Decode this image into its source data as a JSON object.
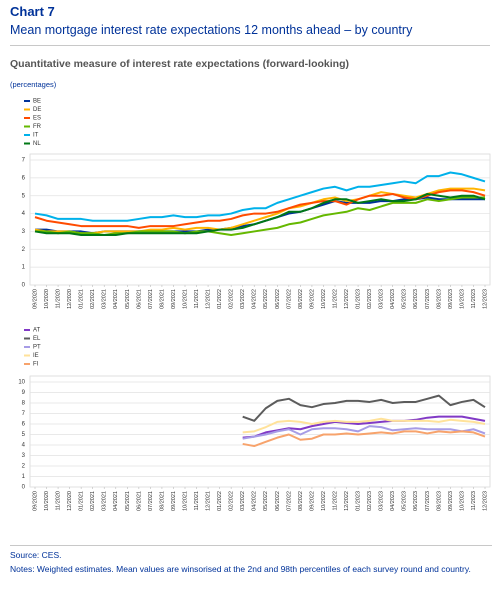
{
  "header": {
    "label": "Chart 7",
    "title": "Mean mortgage interest rate expectations 12 months ahead – by country",
    "subtitle": "Quantitative measure of interest rate expectations (forward-looking)",
    "unit": "(percentages)"
  },
  "footer": {
    "source": "Source: CES.",
    "notes": "Notes: Weighted estimates. Mean values are winsorised at the 2nd and 98th percentiles of each survey round and country."
  },
  "chart_data": [
    {
      "type": "line",
      "grid": true,
      "ylim": [
        0,
        7
      ],
      "yticks": [
        0,
        1,
        2,
        3,
        4,
        5,
        6,
        7
      ],
      "categories": [
        "09/2020",
        "10/2020",
        "11/2020",
        "12/2020",
        "01/2021",
        "02/2021",
        "03/2021",
        "04/2021",
        "05/2021",
        "06/2021",
        "07/2021",
        "08/2021",
        "09/2021",
        "10/2021",
        "11/2021",
        "12/2021",
        "01/2022",
        "02/2022",
        "03/2022",
        "04/2022",
        "05/2022",
        "06/2022",
        "07/2022",
        "08/2022",
        "09/2022",
        "10/2022",
        "11/2022",
        "12/2022",
        "01/2023",
        "02/2023",
        "03/2023",
        "04/2023",
        "05/2023",
        "06/2023",
        "07/2023",
        "08/2023",
        "09/2023",
        "10/2023",
        "11/2023",
        "12/2023"
      ],
      "series": [
        {
          "name": "BE",
          "color": "#003299",
          "values": [
            3.1,
            3.1,
            3.0,
            3.0,
            3.0,
            2.9,
            3.0,
            3.0,
            3.0,
            3.0,
            3.0,
            3.0,
            3.0,
            3.0,
            3.0,
            3.1,
            3.1,
            3.2,
            3.3,
            3.4,
            3.6,
            3.8,
            4.0,
            4.1,
            4.3,
            4.5,
            4.7,
            4.6,
            4.6,
            4.6,
            4.7,
            4.7,
            4.8,
            4.8,
            4.9,
            4.8,
            4.8,
            4.8,
            4.8,
            4.8
          ]
        },
        {
          "name": "DE",
          "color": "#ffb400",
          "values": [
            3.1,
            3.0,
            3.0,
            3.0,
            2.9,
            2.9,
            3.0,
            3.0,
            3.0,
            3.0,
            3.1,
            3.1,
            3.2,
            3.1,
            3.2,
            3.2,
            3.1,
            3.2,
            3.4,
            3.6,
            3.8,
            4.0,
            4.3,
            4.4,
            4.6,
            4.8,
            4.9,
            4.7,
            4.8,
            5.0,
            5.2,
            5.1,
            5.0,
            4.9,
            5.1,
            5.3,
            5.4,
            5.4,
            5.4,
            5.3
          ]
        },
        {
          "name": "ES",
          "color": "#ff4b00",
          "values": [
            3.8,
            3.6,
            3.5,
            3.4,
            3.3,
            3.3,
            3.3,
            3.3,
            3.3,
            3.2,
            3.3,
            3.3,
            3.3,
            3.4,
            3.5,
            3.6,
            3.6,
            3.7,
            3.9,
            4.0,
            4.0,
            4.1,
            4.3,
            4.5,
            4.6,
            4.7,
            4.7,
            4.5,
            4.8,
            5.0,
            5.0,
            5.1,
            4.9,
            4.8,
            5.0,
            5.2,
            5.3,
            5.3,
            5.2,
            5.0
          ]
        },
        {
          "name": "FR",
          "color": "#65b800",
          "values": [
            3.0,
            3.0,
            2.9,
            3.0,
            2.9,
            2.9,
            2.8,
            2.9,
            2.9,
            3.0,
            3.0,
            3.0,
            3.0,
            2.9,
            3.0,
            3.0,
            2.9,
            2.8,
            2.9,
            3.0,
            3.1,
            3.2,
            3.4,
            3.5,
            3.7,
            3.9,
            4.0,
            4.1,
            4.3,
            4.2,
            4.4,
            4.6,
            4.6,
            4.6,
            4.8,
            4.7,
            4.8,
            4.9,
            4.9,
            4.9
          ]
        },
        {
          "name": "IT",
          "color": "#00b1ea",
          "values": [
            4.0,
            3.9,
            3.7,
            3.7,
            3.7,
            3.6,
            3.6,
            3.6,
            3.6,
            3.7,
            3.8,
            3.8,
            3.9,
            3.8,
            3.8,
            3.9,
            3.9,
            4.0,
            4.2,
            4.3,
            4.3,
            4.6,
            4.8,
            5.0,
            5.2,
            5.4,
            5.5,
            5.3,
            5.5,
            5.5,
            5.6,
            5.7,
            5.8,
            5.7,
            6.1,
            6.1,
            6.3,
            6.2,
            6.0,
            5.8
          ]
        },
        {
          "name": "NL",
          "color": "#007816",
          "values": [
            3.0,
            2.9,
            2.9,
            2.9,
            2.8,
            2.8,
            2.8,
            2.8,
            2.9,
            2.9,
            2.9,
            2.9,
            2.9,
            2.9,
            2.9,
            3.0,
            3.1,
            3.1,
            3.2,
            3.4,
            3.6,
            3.8,
            4.1,
            4.1,
            4.3,
            4.6,
            4.8,
            4.8,
            4.6,
            4.7,
            4.8,
            4.7,
            4.7,
            4.8,
            5.1,
            5.0,
            4.9,
            5.0,
            5.0,
            4.8
          ]
        }
      ]
    },
    {
      "type": "line",
      "grid": true,
      "ylim": [
        0,
        10
      ],
      "yticks": [
        0,
        1,
        2,
        3,
        4,
        5,
        6,
        7,
        8,
        9,
        10
      ],
      "categories": [
        "09/2020",
        "10/2020",
        "11/2020",
        "12/2020",
        "01/2021",
        "02/2021",
        "03/2021",
        "04/2021",
        "05/2021",
        "06/2021",
        "07/2021",
        "08/2021",
        "09/2021",
        "10/2021",
        "11/2021",
        "12/2021",
        "01/2022",
        "02/2022",
        "03/2022",
        "04/2022",
        "05/2022",
        "06/2022",
        "07/2022",
        "08/2022",
        "09/2022",
        "10/2022",
        "11/2022",
        "12/2022",
        "01/2023",
        "02/2023",
        "03/2023",
        "04/2023",
        "05/2023",
        "06/2023",
        "07/2023",
        "08/2023",
        "09/2023",
        "10/2023",
        "11/2023",
        "12/2023"
      ],
      "series": [
        {
          "name": "AT",
          "color": "#8139c6",
          "values": [
            null,
            null,
            null,
            null,
            null,
            null,
            null,
            null,
            null,
            null,
            null,
            null,
            null,
            null,
            null,
            null,
            null,
            null,
            4.7,
            4.8,
            5.2,
            5.4,
            5.6,
            5.5,
            5.8,
            6.0,
            6.2,
            6.1,
            6.0,
            6.1,
            6.2,
            6.3,
            6.3,
            6.4,
            6.6,
            6.7,
            6.7,
            6.7,
            6.5,
            6.3
          ]
        },
        {
          "name": "EL",
          "color": "#5c5c5c",
          "values": [
            null,
            null,
            null,
            null,
            null,
            null,
            null,
            null,
            null,
            null,
            null,
            null,
            null,
            null,
            null,
            null,
            null,
            null,
            6.7,
            6.3,
            7.5,
            8.2,
            8.4,
            7.8,
            7.6,
            7.9,
            8.0,
            8.2,
            8.2,
            8.1,
            8.3,
            8.0,
            8.1,
            8.1,
            8.4,
            8.7,
            7.8,
            8.1,
            8.3,
            7.6
          ]
        },
        {
          "name": "PT",
          "color": "#a79ce6",
          "values": [
            null,
            null,
            null,
            null,
            null,
            null,
            null,
            null,
            null,
            null,
            null,
            null,
            null,
            null,
            null,
            null,
            null,
            null,
            4.6,
            4.8,
            5.0,
            5.3,
            5.5,
            5.0,
            5.5,
            5.6,
            5.6,
            5.5,
            5.3,
            5.8,
            5.7,
            5.4,
            5.5,
            5.6,
            5.5,
            5.5,
            5.5,
            5.3,
            5.5,
            5.1
          ]
        },
        {
          "name": "IE",
          "color": "#ffe29a",
          "values": [
            null,
            null,
            null,
            null,
            null,
            null,
            null,
            null,
            null,
            null,
            null,
            null,
            null,
            null,
            null,
            null,
            null,
            null,
            5.2,
            5.3,
            5.7,
            6.2,
            6.3,
            6.2,
            6.0,
            6.2,
            6.3,
            6.2,
            6.2,
            6.3,
            6.5,
            6.3,
            6.3,
            6.3,
            6.3,
            6.2,
            6.4,
            6.3,
            6.2,
            6.0
          ]
        },
        {
          "name": "FI",
          "color": "#f7a36c",
          "values": [
            null,
            null,
            null,
            null,
            null,
            null,
            null,
            null,
            null,
            null,
            null,
            null,
            null,
            null,
            null,
            null,
            null,
            null,
            4.1,
            3.9,
            4.3,
            4.7,
            5.0,
            4.5,
            4.6,
            5.0,
            5.0,
            5.1,
            5.0,
            5.1,
            5.2,
            5.1,
            5.3,
            5.3,
            5.1,
            5.3,
            5.2,
            5.3,
            5.2,
            4.8
          ]
        }
      ]
    }
  ]
}
